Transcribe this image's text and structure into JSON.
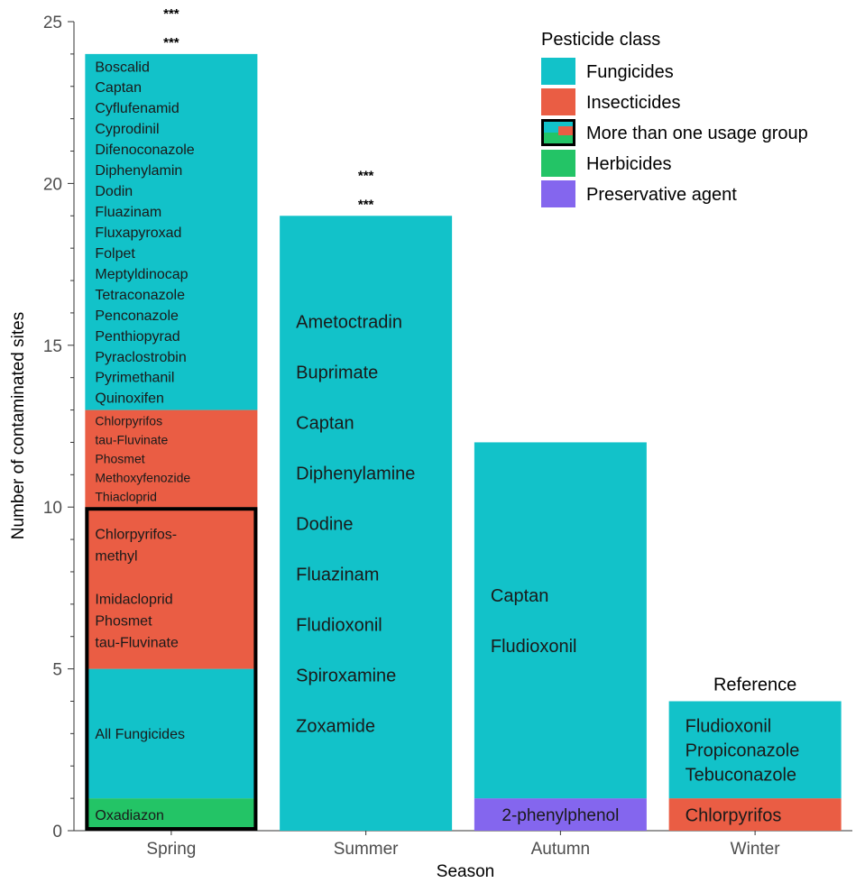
{
  "chart_data": {
    "type": "bar",
    "stacked": true,
    "xlabel": "Season",
    "ylabel": "Number of contaminated sites",
    "ylim": [
      0,
      25
    ],
    "yticks": [
      0,
      5,
      10,
      15,
      20,
      25
    ],
    "grid": false,
    "legend_position": "top-right",
    "categories": [
      "Spring",
      "Summer",
      "Autumn",
      "Winter"
    ],
    "legend": {
      "title": "Pesticide class",
      "items": [
        {
          "label": "Fungicides",
          "color": "#12c2c9",
          "key": "fungicides"
        },
        {
          "label": "Insecticides",
          "color": "#ea5d44",
          "key": "insecticides"
        },
        {
          "label": "More than one usage group",
          "color": "#12c2c9",
          "key": "multi"
        },
        {
          "label": "Herbicides",
          "color": "#23c466",
          "key": "herbicides"
        },
        {
          "label": "Preservative agent",
          "color": "#8466ee",
          "key": "preservative"
        }
      ]
    },
    "bars": [
      {
        "category": "Spring",
        "significance": [
          "***",
          "***"
        ],
        "segments": [
          {
            "class": "Herbicides",
            "color": "#23c466",
            "start": 0,
            "end": 1,
            "font": 16,
            "labels": [
              "Oxadiazon"
            ]
          },
          {
            "class": "Fungicides",
            "color": "#12c2c9",
            "start": 1,
            "end": 5,
            "font": 16,
            "labels": [
              "All Fungicides"
            ]
          },
          {
            "class": "Insecticides",
            "color": "#ea5d44",
            "start": 5,
            "end": 10,
            "font": 16,
            "labels": [
              "Chlorpyrifos-",
              "methyl",
              "",
              "Imidacloprid",
              "Phosmet",
              "tau-Fluvinate"
            ]
          },
          {
            "class": "Insecticides",
            "color": "#ea5d44",
            "start": 10,
            "end": 13,
            "font": 14,
            "labels": [
              "Chlorpyrifos",
              "tau-Fluvinate",
              "Phosmet",
              "Methoxyfenozide",
              "Thiacloprid"
            ]
          },
          {
            "class": "Fungicides",
            "color": "#12c2c9",
            "start": 13,
            "end": 24,
            "font": 16,
            "labels": [
              "Boscalid",
              "Captan",
              "Cyflufenamid",
              "Cyprodinil",
              "Difenoconazole",
              "Diphenylamin",
              "Dodin",
              "Fluazinam",
              "Fluxapyroxad",
              "Folpet",
              "Meptyldinocap",
              "Tetraconazole",
              "Penconazole",
              "Penthiopyrad",
              "Pyraclostrobin",
              "Pyrimethanil",
              "Quinoxifen"
            ]
          }
        ],
        "outlined_range": [
          0,
          10
        ]
      },
      {
        "category": "Summer",
        "significance": [
          "***",
          "***"
        ],
        "segments": [
          {
            "class": "Fungicides",
            "color": "#12c2c9",
            "start": 0,
            "end": 19,
            "font": 20,
            "labels": [
              "Ametoctradin",
              "Buprimate",
              "Captan",
              "Diphenylamine",
              "Dodine",
              "Fluazinam",
              "Fludioxonil",
              "Spiroxamine",
              "Zoxamide"
            ]
          }
        ]
      },
      {
        "category": "Autumn",
        "significance": [],
        "segments": [
          {
            "class": "Preservative agent",
            "color": "#8466ee",
            "start": 0,
            "end": 1,
            "font": 19,
            "labels": [
              "2-phenylphenol"
            ]
          },
          {
            "class": "Fungicides",
            "color": "#12c2c9",
            "start": 1,
            "end": 12,
            "font": 20,
            "labels": [
              "Captan",
              "Fludioxonil"
            ]
          }
        ]
      },
      {
        "category": "Winter",
        "annotation": "Reference",
        "segments": [
          {
            "class": "Insecticides",
            "color": "#ea5d44",
            "start": 0,
            "end": 1,
            "font": 20,
            "labels": [
              "Chlorpyrifos"
            ]
          },
          {
            "class": "Fungicides",
            "color": "#12c2c9",
            "start": 1,
            "end": 4,
            "font": 20,
            "labels": [
              "Fludioxonil",
              "Propiconazole",
              "Tebuconazole"
            ]
          }
        ]
      }
    ]
  }
}
